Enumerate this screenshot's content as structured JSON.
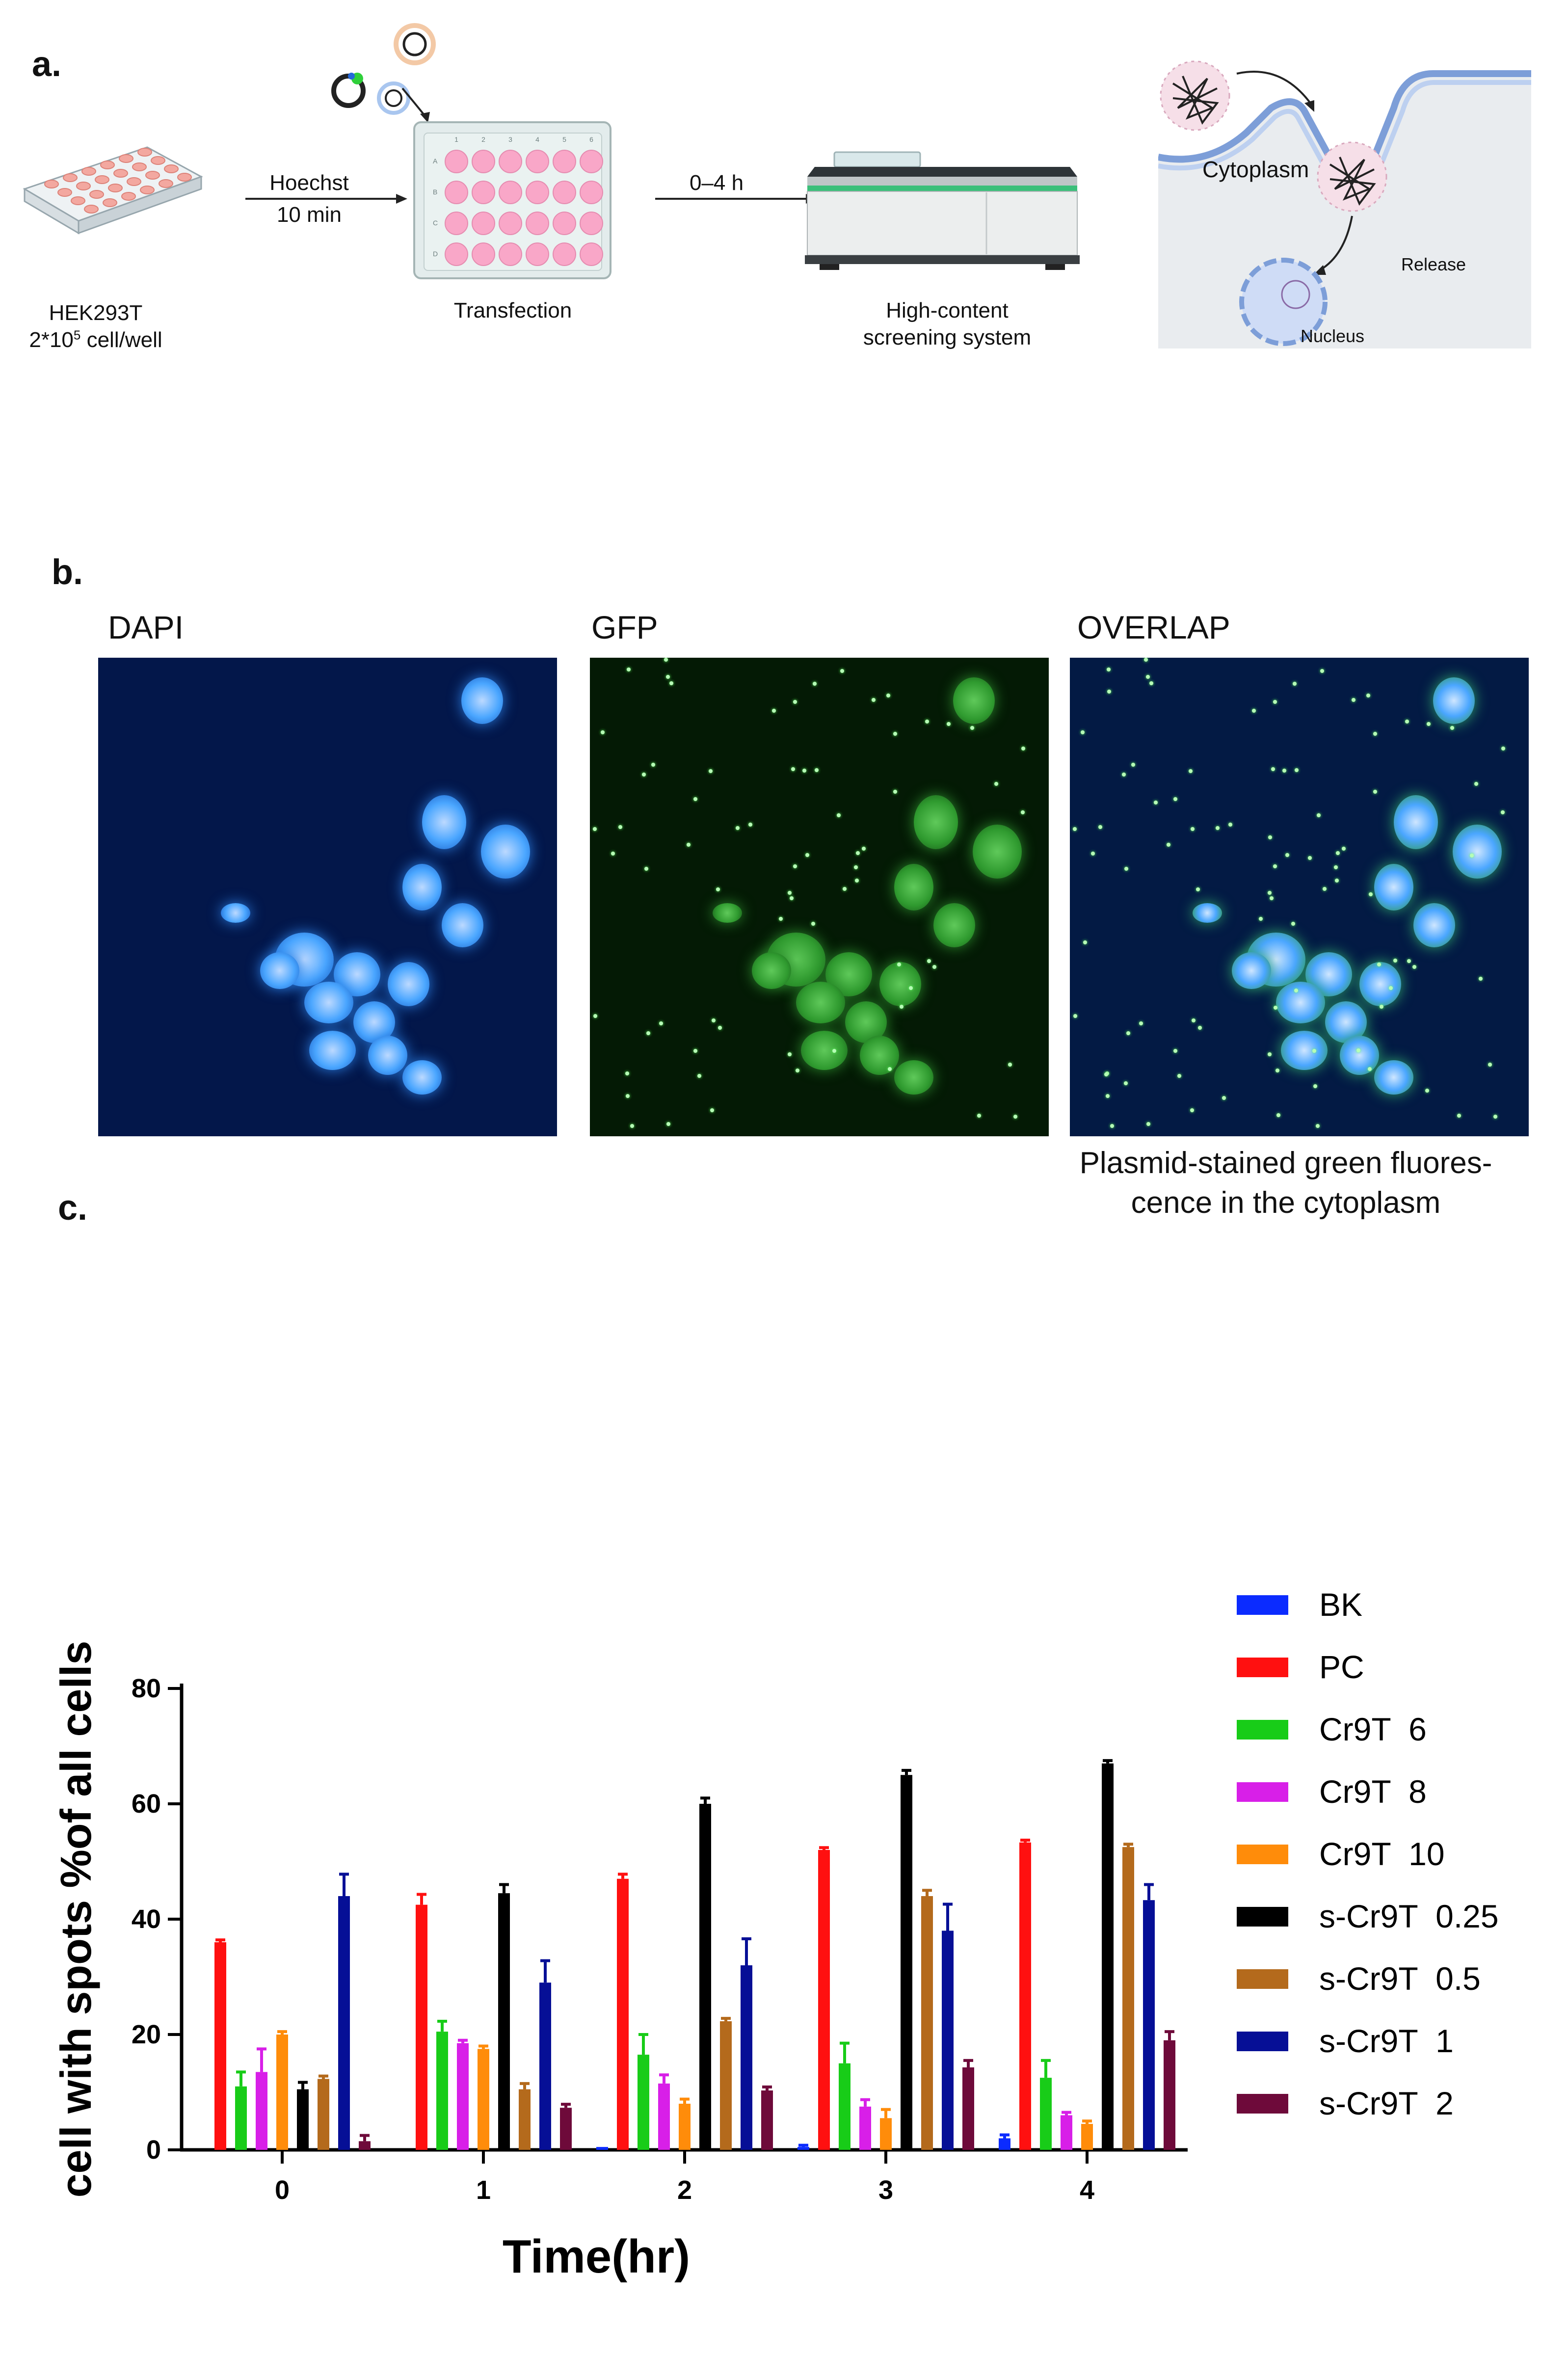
{
  "panel_a": {
    "letter": "a.",
    "plate_label": "HEK293T",
    "cells_prefix": "2*10",
    "cells_exp": "5",
    "cells_suffix": " cell/well",
    "step1_top": "Hoechst",
    "step1_bottom": "10 min",
    "transfection_label": "Transfection",
    "step2_top": "0–4 h",
    "hcs_label_line1": "High-content",
    "hcs_label_line2": "screening system",
    "plate_rows": [
      "A",
      "B",
      "C",
      "D"
    ],
    "plate_cols": [
      "1",
      "2",
      "3",
      "4",
      "5",
      "6"
    ],
    "cytoplasm_label": "Cytoplasm",
    "release_label": "Release",
    "nucleus_label": "Nucleus"
  },
  "panel_b": {
    "letter": "b.",
    "channels": [
      "DAPI",
      "GFP",
      "OVERLAP"
    ],
    "note_line1": "Plasmid-stained green fluores-",
    "note_line2": "cence in the cytoplasm"
  },
  "panel_c": {
    "letter": "c."
  },
  "chart_data": {
    "type": "bar",
    "title": "",
    "xlabel": "Time(hr)",
    "ylabel": "cell with spots %of all cells",
    "categories": [
      "0",
      "1",
      "2",
      "3",
      "4"
    ],
    "ylim": [
      0,
      80
    ],
    "yticks": [
      0,
      20,
      40,
      60,
      80
    ],
    "legend_position": "right",
    "series": [
      {
        "name": "BK",
        "color": "#0b2bff",
        "values": [
          0,
          0,
          0.5,
          0.5,
          2.0
        ],
        "errors": [
          0,
          0,
          0,
          0.3,
          0.6
        ]
      },
      {
        "name": "PC",
        "color": "#ff1010",
        "values": [
          36,
          42.5,
          47,
          52,
          53.3
        ],
        "errors": [
          0.4,
          1.8,
          0.8,
          0.4,
          0.4
        ]
      },
      {
        "name": "Cr9T  6",
        "color": "#18cc18",
        "values": [
          11,
          20.5,
          16.5,
          15,
          12.5
        ],
        "errors": [
          2.5,
          1.8,
          3.5,
          3.5,
          3.0
        ]
      },
      {
        "name": "Cr9T  8",
        "color": "#d81fe8",
        "values": [
          13.5,
          18.5,
          11.5,
          7.5,
          6.0
        ],
        "errors": [
          4.0,
          0.5,
          1.5,
          1.2,
          0.5
        ]
      },
      {
        "name": "Cr9T  10",
        "color": "#ff8c0a",
        "values": [
          20,
          17.5,
          8,
          5.5,
          4.5
        ],
        "errors": [
          0.5,
          0.5,
          0.8,
          1.5,
          0.5
        ]
      },
      {
        "name": "s-Cr9T  0.25",
        "color": "#000000",
        "values": [
          10.5,
          44.5,
          60,
          65,
          67
        ],
        "errors": [
          1.2,
          1.5,
          1.0,
          0.8,
          0.5
        ]
      },
      {
        "name": "s-Cr9T  0.5",
        "color": "#b46a1c",
        "values": [
          12.3,
          10.5,
          22.3,
          44,
          52.5
        ],
        "errors": [
          0.5,
          1.0,
          0.5,
          1.0,
          0.5
        ]
      },
      {
        "name": "s-Cr9T  1",
        "color": "#060f96",
        "values": [
          44,
          29,
          32,
          38,
          43.3
        ],
        "errors": [
          3.8,
          3.8,
          4.6,
          4.6,
          2.7
        ]
      },
      {
        "name": "s-Cr9T  2",
        "color": "#6e0a3a",
        "values": [
          1.5,
          7.3,
          10.3,
          14.3,
          19
        ],
        "errors": [
          1.0,
          0.6,
          0.6,
          1.2,
          1.5
        ]
      }
    ]
  }
}
